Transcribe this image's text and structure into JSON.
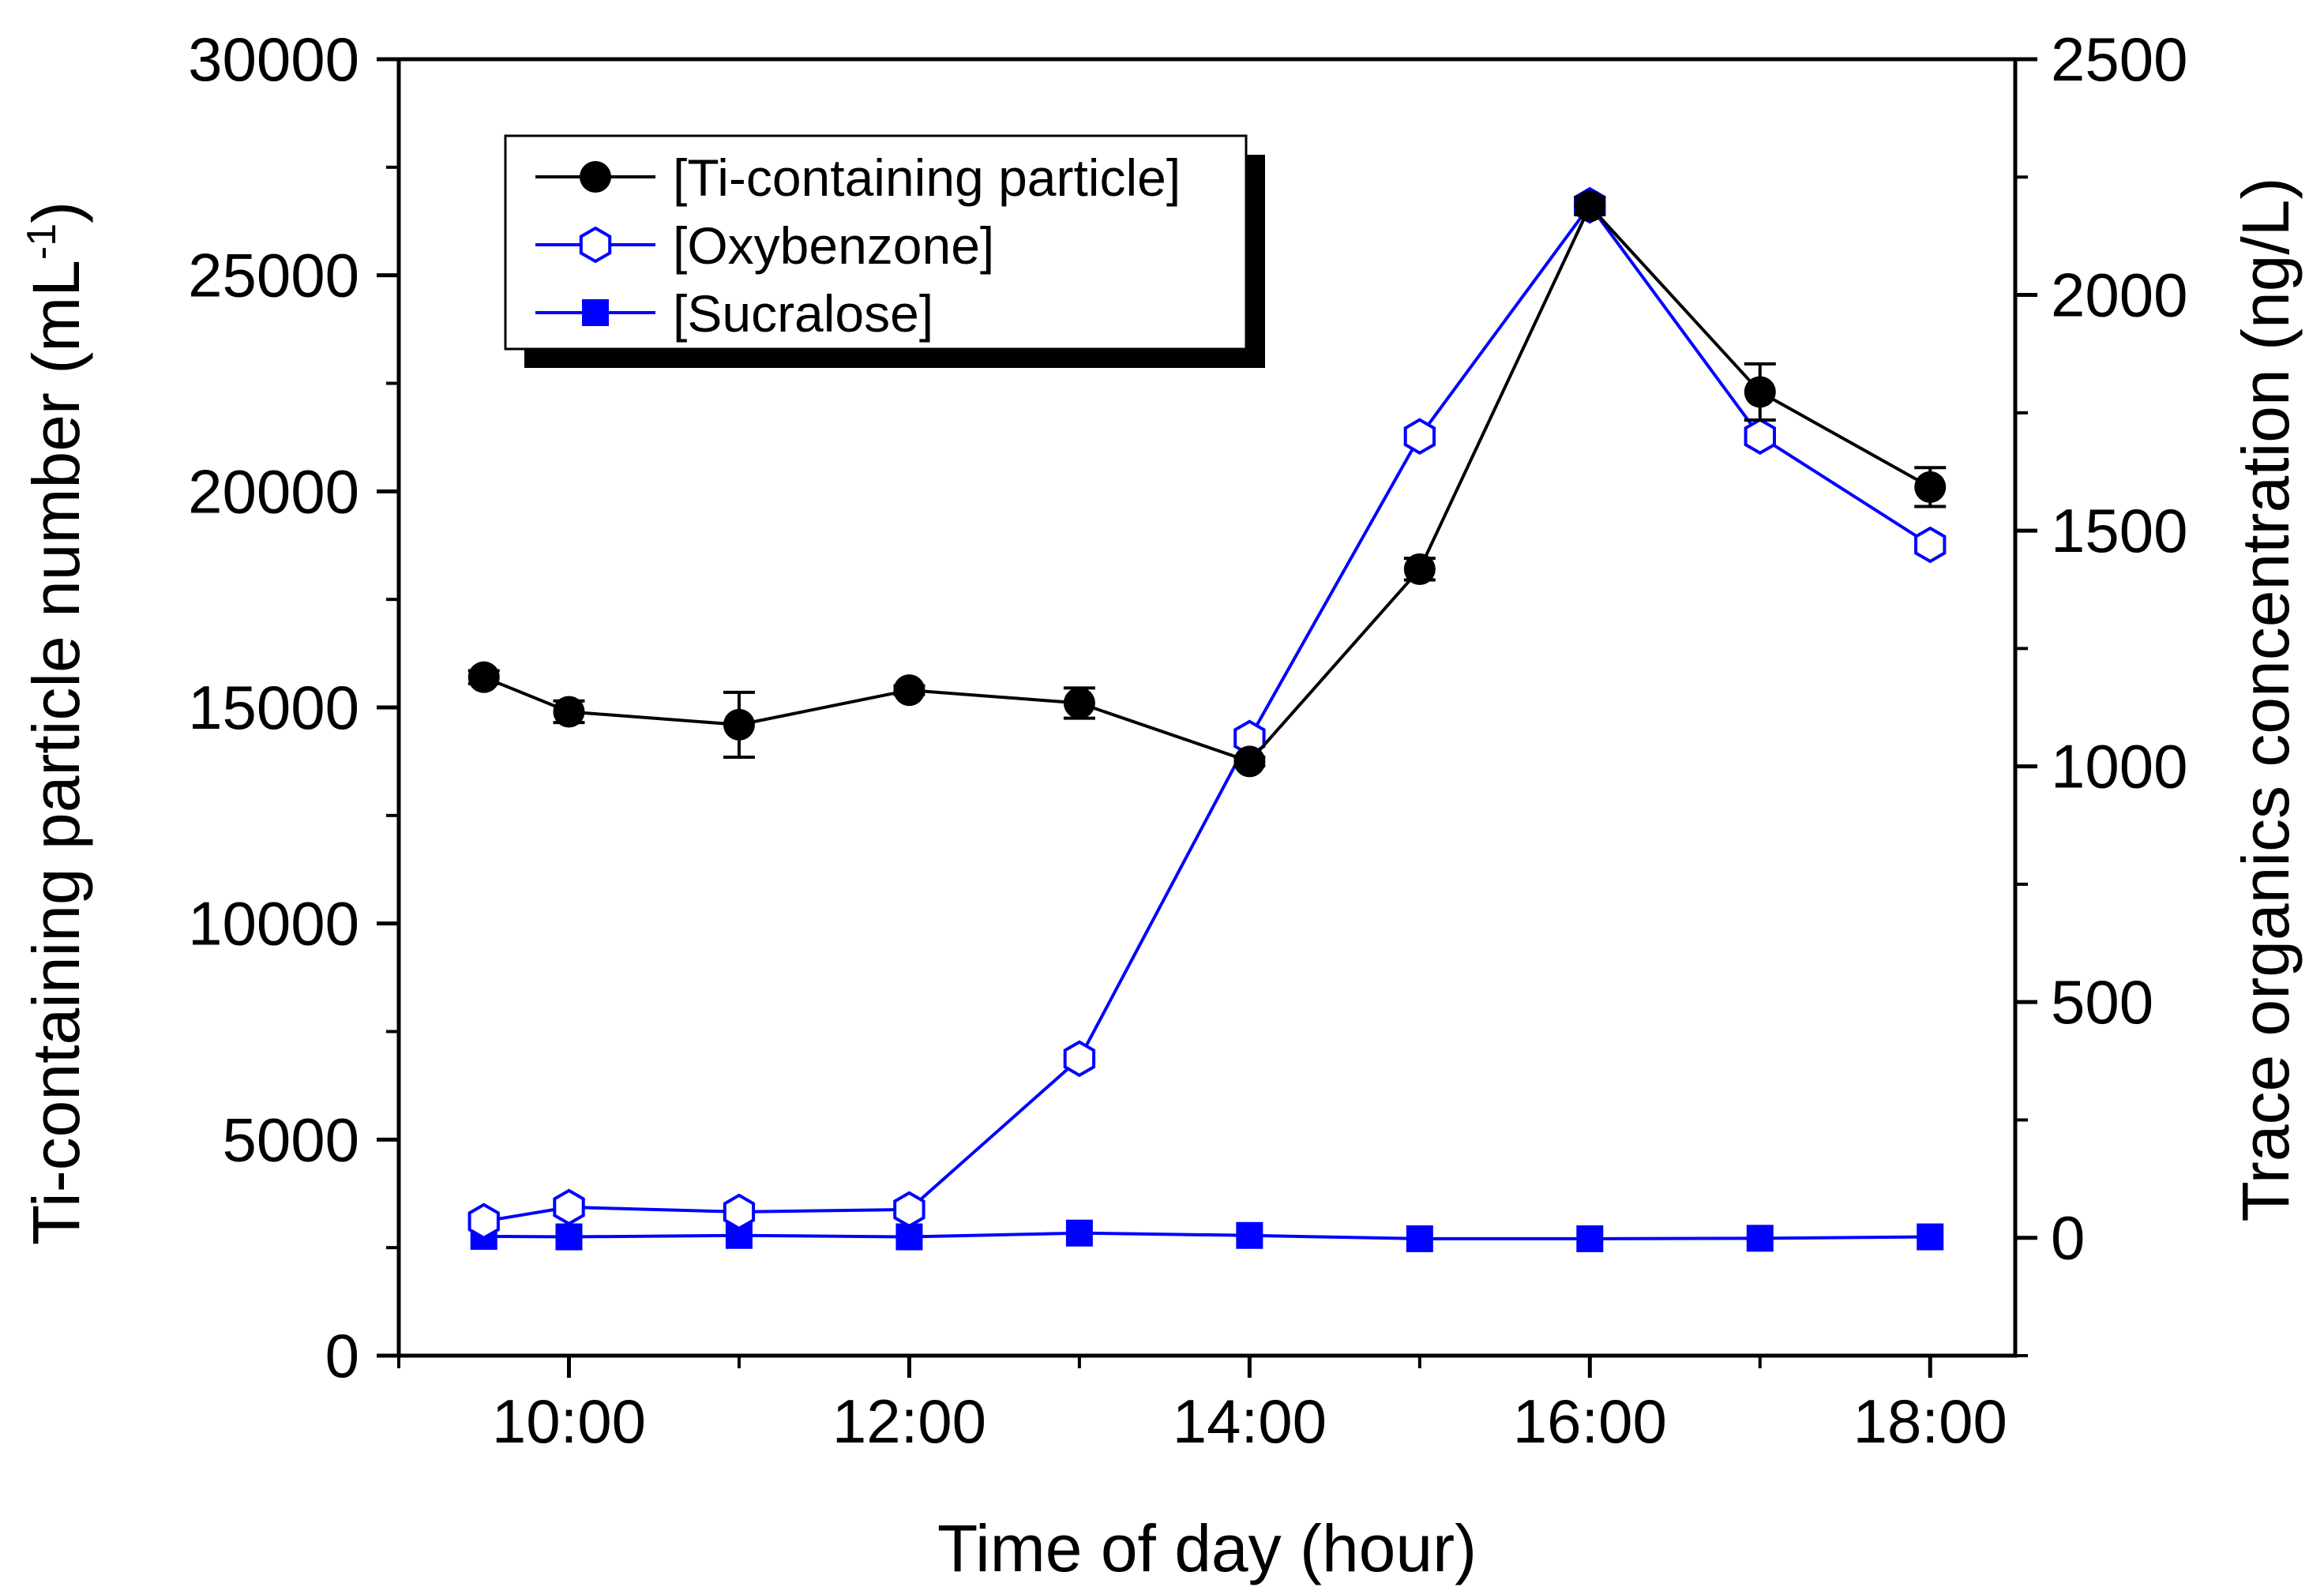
{
  "chart_data": {
    "type": "line",
    "xlabel": "Time of day (hour)",
    "ylabel_left": "Ti-containing particle number (mL",
    "ylabel_left_sup": "-1",
    "ylabel_left_close": ")",
    "ylabel_right": "Trace organics concentration (ng/L)",
    "x_ticks": [
      "10:00",
      "12:00",
      "14:00",
      "16:00",
      "18:00"
    ],
    "x_tick_values": [
      10,
      12,
      14,
      16,
      18
    ],
    "xlim": [
      9.0,
      18.5
    ],
    "y_left_ticks": [
      "0",
      "5000",
      "10000",
      "15000",
      "20000",
      "25000",
      "30000"
    ],
    "y_left_tick_values": [
      0,
      5000,
      10000,
      15000,
      20000,
      25000,
      30000
    ],
    "ylim_left": [
      0,
      30000
    ],
    "y_right_ticks": [
      "0",
      "500",
      "1000",
      "1500",
      "2000",
      "2500"
    ],
    "y_right_tick_values": [
      0,
      500,
      1000,
      1500,
      2000,
      2500
    ],
    "ylim_right": [
      -250,
      2500
    ],
    "legend_position": "top-left",
    "colors": {
      "black": "#000000",
      "blue": "#0000ff"
    },
    "series": [
      {
        "name": "[Ti-containing particle]",
        "axis": "left",
        "color": "#000000",
        "marker": "filled-circle",
        "x": [
          9.5,
          10,
          11,
          12,
          13,
          14,
          15,
          16,
          17,
          18
        ],
        "y": [
          15700,
          14900,
          14600,
          15400,
          15100,
          13750,
          18200,
          26600,
          22300,
          20100
        ],
        "error": [
          150,
          250,
          750,
          100,
          350,
          100,
          250,
          200,
          650,
          450
        ]
      },
      {
        "name": "[Oxybenzone]",
        "axis": "right",
        "color": "#0000ff",
        "marker": "open-hexagon",
        "x": [
          9.5,
          10,
          11,
          12,
          13,
          14,
          15,
          16,
          17,
          18
        ],
        "y": [
          35,
          65,
          55,
          60,
          380,
          1060,
          1700,
          2190,
          1700,
          1470
        ]
      },
      {
        "name": "[Sucralose]",
        "axis": "right",
        "color": "#0000ff",
        "marker": "filled-square",
        "x": [
          9.5,
          10,
          11,
          12,
          13,
          14,
          15,
          16,
          17,
          18
        ],
        "y": [
          3,
          2,
          5,
          2,
          10,
          5,
          -2,
          -2,
          -1,
          2
        ]
      }
    ]
  }
}
